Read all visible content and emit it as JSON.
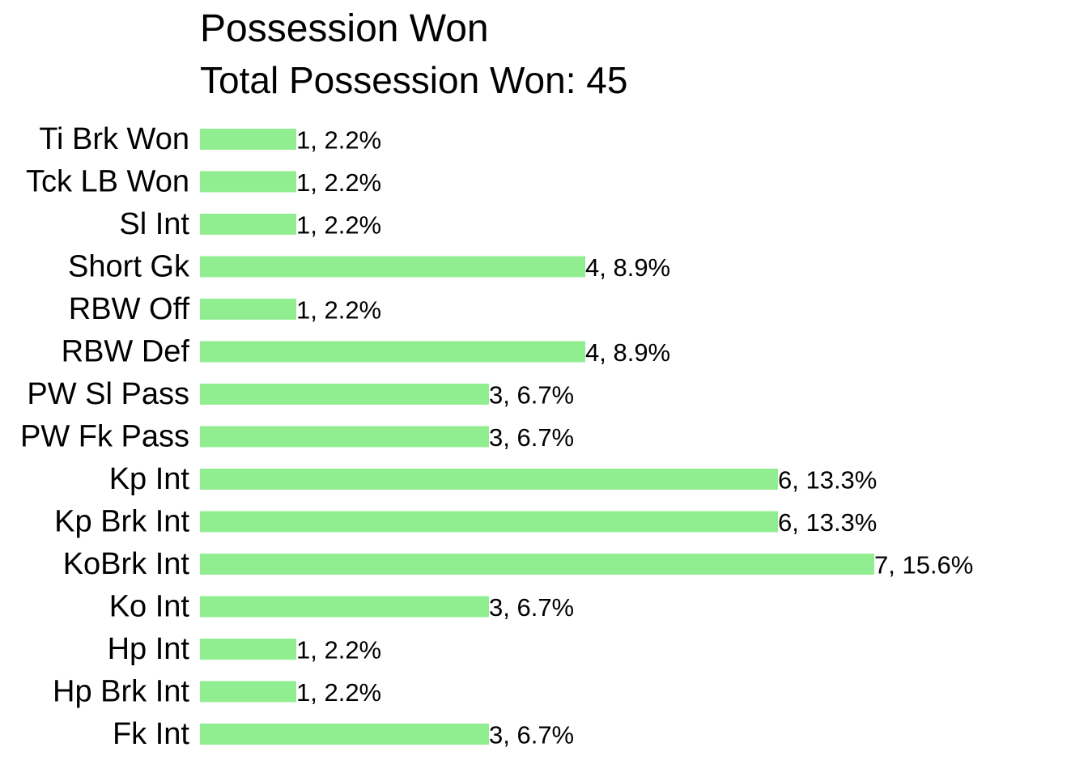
{
  "chart_data": {
    "type": "bar",
    "orientation": "horizontal",
    "title": "Possession Won",
    "subtitle": "Total Possession Won: 45",
    "categories": [
      "Ti Brk Won",
      "Tck LB Won",
      "Sl Int",
      "Short Gk",
      "RBW Off",
      "RBW Def",
      "PW Sl Pass",
      "PW Fk Pass",
      "Kp Int",
      "Kp Brk Int",
      "KoBrk Int",
      "Ko Int",
      "Hp Int",
      "Hp Brk Int",
      "Fk Int"
    ],
    "values": [
      1,
      1,
      1,
      4,
      1,
      4,
      3,
      3,
      6,
      6,
      7,
      3,
      1,
      1,
      3
    ],
    "data_labels": [
      "1, 2.2%",
      "1, 2.2%",
      "1, 2.2%",
      "4, 8.9%",
      "1, 2.2%",
      "4, 8.9%",
      "3, 6.7%",
      "3, 6.7%",
      "6, 13.3%",
      "6, 13.3%",
      "7, 15.6%",
      "3, 6.7%",
      "1, 2.2%",
      "1, 2.2%",
      "3, 6.7%"
    ],
    "xlim": [
      0,
      7
    ],
    "grid": false,
    "bar_color": "#90EE90",
    "label_color": "#000000"
  }
}
